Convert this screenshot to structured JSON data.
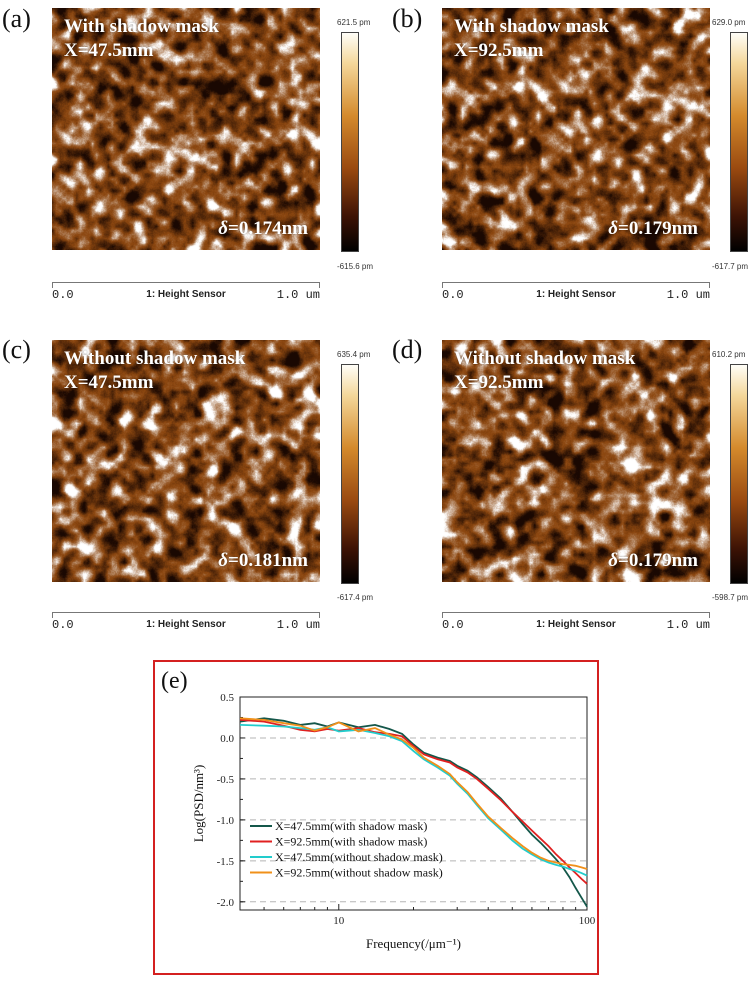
{
  "figure": {
    "panels": [
      {
        "label": "(a)",
        "title_line1": "With shadow mask",
        "title_line2": "X=47.5mm",
        "delta_symbol": "δ",
        "delta_value": "=0.174nm",
        "scale_max": "621.5 pm",
        "scale_min": "-615.6 pm",
        "axis_start": "0.0",
        "axis_title": "1: Height Sensor",
        "axis_end": "1.0 um"
      },
      {
        "label": "(b)",
        "title_line1": "With shadow mask",
        "title_line2": "X=92.5mm",
        "delta_symbol": "δ",
        "delta_value": "=0.179nm",
        "scale_max": "629.0 pm",
        "scale_min": "-617.7 pm",
        "axis_start": "0.0",
        "axis_title": "1: Height Sensor",
        "axis_end": "1.0 um"
      },
      {
        "label": "(c)",
        "title_line1": "Without shadow mask",
        "title_line2": "X=47.5mm",
        "delta_symbol": "δ",
        "delta_value": "=0.181nm",
        "scale_max": "635.4 pm",
        "scale_min": "-617.4 pm",
        "axis_start": "0.0",
        "axis_title": "1: Height Sensor",
        "axis_end": "1.0 um"
      },
      {
        "label": "(d)",
        "title_line1": "Without shadow mask",
        "title_line2": "X=92.5mm",
        "delta_symbol": "δ",
        "delta_value": "=0.179nm",
        "scale_max": "610.2 pm",
        "scale_min": "-598.7 pm",
        "axis_start": "0.0",
        "axis_title": "1: Height Sensor",
        "axis_end": "1.0 um"
      }
    ],
    "afm_colors": {
      "dark": "#1a0802",
      "mid": "#8c4710",
      "light": "#ffffff"
    }
  },
  "chart_data": {
    "label": "(e)",
    "type": "line",
    "xscale": "log",
    "xlim": [
      4,
      100
    ],
    "ylim": [
      -2.1,
      0.5
    ],
    "xticks": [
      10,
      100
    ],
    "yticks": [
      0.5,
      0.0,
      -0.5,
      -1.0,
      -1.5,
      -2.0
    ],
    "ytick_labels": [
      "0.5",
      "0.0",
      "-0.5",
      "-1.0",
      "-1.5",
      "-2.0"
    ],
    "xlabel": "Frequency(/μm⁻¹)",
    "ylabel": "Log(PSD/nm³)",
    "gridlines_y": [
      0.0,
      -0.5,
      -1.0,
      -1.5,
      -2.0
    ],
    "legend_position": "lower-left",
    "series": [
      {
        "name": "X=47.5mm(with shadow mask)",
        "color": "#14574a",
        "x": [
          4,
          5,
          6,
          7,
          8,
          9,
          10,
          12,
          14,
          16,
          18,
          20,
          22,
          25,
          28,
          30,
          33,
          36,
          40,
          45,
          50,
          55,
          60,
          65,
          70,
          75,
          80,
          85,
          90,
          95,
          100
        ],
        "y": [
          0.2,
          0.24,
          0.21,
          0.16,
          0.18,
          0.14,
          0.19,
          0.13,
          0.16,
          0.11,
          0.05,
          -0.08,
          -0.18,
          -0.24,
          -0.28,
          -0.34,
          -0.4,
          -0.48,
          -0.6,
          -0.74,
          -0.9,
          -1.05,
          -1.18,
          -1.28,
          -1.38,
          -1.48,
          -1.58,
          -1.7,
          -1.83,
          -1.95,
          -2.06
        ]
      },
      {
        "name": "X=92.5mm(with shadow mask)",
        "color": "#e02020",
        "x": [
          4,
          5,
          6,
          7,
          8,
          9,
          10,
          12,
          14,
          16,
          18,
          20,
          22,
          25,
          28,
          30,
          33,
          36,
          40,
          45,
          50,
          55,
          60,
          65,
          70,
          75,
          80,
          85,
          90,
          95,
          100
        ],
        "y": [
          0.22,
          0.2,
          0.15,
          0.1,
          0.08,
          0.11,
          0.09,
          0.12,
          0.07,
          0.05,
          0.02,
          -0.1,
          -0.2,
          -0.26,
          -0.3,
          -0.36,
          -0.42,
          -0.5,
          -0.62,
          -0.76,
          -0.9,
          -1.02,
          -1.13,
          -1.23,
          -1.32,
          -1.42,
          -1.5,
          -1.58,
          -1.65,
          -1.72,
          -1.78
        ]
      },
      {
        "name": "X=47.5mm(without shadow mask)",
        "color": "#22cccc",
        "x": [
          4,
          5,
          6,
          7,
          8,
          9,
          10,
          12,
          14,
          16,
          18,
          20,
          22,
          25,
          28,
          30,
          33,
          36,
          40,
          45,
          50,
          55,
          60,
          65,
          70,
          75,
          80,
          85,
          90,
          95,
          100
        ],
        "y": [
          0.16,
          0.15,
          0.14,
          0.12,
          0.1,
          0.13,
          0.08,
          0.1,
          0.06,
          0.02,
          -0.04,
          -0.16,
          -0.26,
          -0.36,
          -0.46,
          -0.56,
          -0.68,
          -0.82,
          -0.98,
          -1.12,
          -1.25,
          -1.35,
          -1.42,
          -1.48,
          -1.52,
          -1.55,
          -1.57,
          -1.6,
          -1.62,
          -1.65,
          -1.68
        ]
      },
      {
        "name": "X=92.5mm(without shadow mask)",
        "color": "#f0901a",
        "x": [
          4,
          5,
          6,
          7,
          8,
          9,
          10,
          12,
          14,
          16,
          18,
          20,
          22,
          25,
          28,
          30,
          33,
          36,
          40,
          45,
          50,
          55,
          60,
          65,
          70,
          75,
          80,
          85,
          90,
          95,
          100
        ],
        "y": [
          0.24,
          0.22,
          0.18,
          0.15,
          0.09,
          0.13,
          0.19,
          0.08,
          0.12,
          0.04,
          -0.02,
          -0.12,
          -0.24,
          -0.34,
          -0.44,
          -0.54,
          -0.66,
          -0.8,
          -0.96,
          -1.1,
          -1.22,
          -1.32,
          -1.4,
          -1.46,
          -1.5,
          -1.52,
          -1.54,
          -1.55,
          -1.56,
          -1.58,
          -1.6
        ]
      }
    ]
  }
}
